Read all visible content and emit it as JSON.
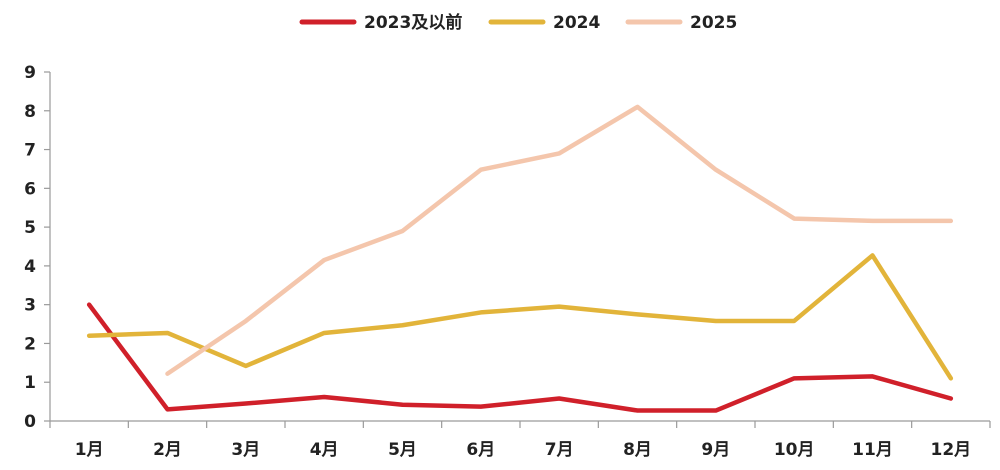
{
  "chart_data": {
    "type": "line",
    "title": "",
    "xlabel": "",
    "ylabel": "",
    "categories": [
      "1月",
      "2月",
      "3月",
      "4月",
      "5月",
      "6月",
      "7月",
      "8月",
      "9月",
      "10月",
      "11月",
      "12月"
    ],
    "ylim": [
      0,
      9
    ],
    "yticks": [
      "0",
      "1",
      "2",
      "3",
      "4",
      "5",
      "6",
      "7",
      "8",
      "9"
    ],
    "grid": false,
    "legend_position": "top-center",
    "series": [
      {
        "name": "2023及以前",
        "color": "#d0202a",
        "values": [
          3.0,
          0.3,
          0.45,
          0.62,
          0.42,
          0.37,
          0.58,
          0.27,
          0.27,
          1.1,
          1.15,
          0.58
        ]
      },
      {
        "name": "2024",
        "color": "#e2b43a",
        "values": [
          2.2,
          2.27,
          1.42,
          2.27,
          2.47,
          2.8,
          2.95,
          2.75,
          2.58,
          2.58,
          4.27,
          1.1
        ]
      },
      {
        "name": "2025",
        "color": "#f4c6ac",
        "values": [
          null,
          1.22,
          2.58,
          4.15,
          4.9,
          6.48,
          6.9,
          8.1,
          6.48,
          5.22,
          5.16,
          5.16
        ]
      }
    ]
  }
}
